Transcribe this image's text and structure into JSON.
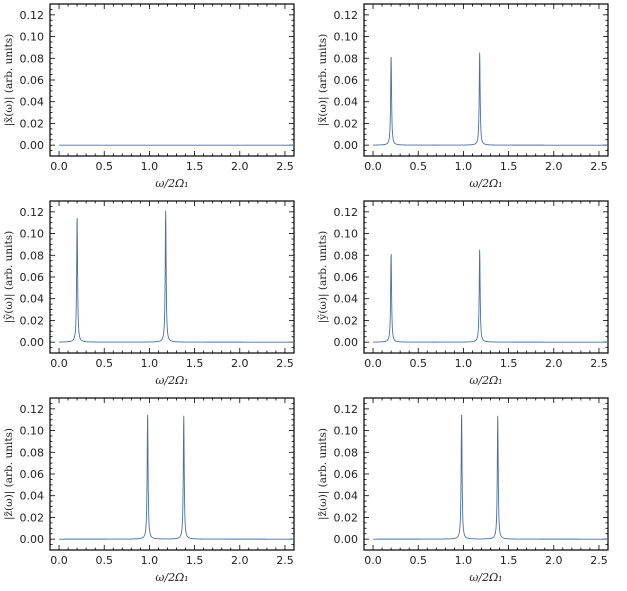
{
  "chart_data": [
    {
      "type": "line",
      "panel": "top-left",
      "xlabel": "ω/2Ω₁",
      "ylabel": "|x̃(ω)|  (arb. units)",
      "xlim": [
        -0.1,
        2.6
      ],
      "ylim": [
        -0.01,
        0.13
      ],
      "xticks": [
        0.0,
        0.5,
        1.0,
        1.5,
        2.0,
        2.5
      ],
      "xtick_labels": [
        "0.0",
        "0.5",
        "1.0",
        "1.5",
        "2.0",
        "2.5"
      ],
      "yticks": [
        0.0,
        0.02,
        0.04,
        0.06,
        0.08,
        0.1,
        0.12
      ],
      "ytick_labels": [
        "0.00",
        "0.02",
        "0.04",
        "0.06",
        "0.08",
        "0.10",
        "0.12"
      ],
      "series": [
        {
          "color": "#4a6fa5",
          "baseline": 0.0,
          "peaks": []
        }
      ]
    },
    {
      "type": "line",
      "panel": "top-right",
      "xlabel": "ω/2Ω₁",
      "ylabel": "|x̃(ω)|  (arb. units)",
      "xlim": [
        -0.1,
        2.6
      ],
      "ylim": [
        -0.01,
        0.13
      ],
      "xticks": [
        0.0,
        0.5,
        1.0,
        1.5,
        2.0,
        2.5
      ],
      "xtick_labels": [
        "0.0",
        "0.5",
        "1.0",
        "1.5",
        "2.0",
        "2.5"
      ],
      "yticks": [
        0.0,
        0.02,
        0.04,
        0.06,
        0.08,
        0.1,
        0.12
      ],
      "ytick_labels": [
        "0.00",
        "0.02",
        "0.04",
        "0.06",
        "0.08",
        "0.10",
        "0.12"
      ],
      "series": [
        {
          "color": "#4a6fa5",
          "baseline": 0.0,
          "peaks": [
            {
              "x": 0.2,
              "y": 0.083
            },
            {
              "x": 1.18,
              "y": 0.086
            }
          ]
        }
      ]
    },
    {
      "type": "line",
      "panel": "middle-left",
      "xlabel": "ω/2Ω₁",
      "ylabel": "|ỹ(ω)|  (arb. units)",
      "xlim": [
        -0.1,
        2.6
      ],
      "ylim": [
        -0.01,
        0.13
      ],
      "xticks": [
        0.0,
        0.5,
        1.0,
        1.5,
        2.0,
        2.5
      ],
      "xtick_labels": [
        "0.0",
        "0.5",
        "1.0",
        "1.5",
        "2.0",
        "2.5"
      ],
      "yticks": [
        0.0,
        0.02,
        0.04,
        0.06,
        0.08,
        0.1,
        0.12
      ],
      "ytick_labels": [
        "0.00",
        "0.02",
        "0.04",
        "0.06",
        "0.08",
        "0.10",
        "0.12"
      ],
      "series": [
        {
          "color": "#4a6fa5",
          "baseline": 0.0,
          "peaks": [
            {
              "x": 0.2,
              "y": 0.117
            },
            {
              "x": 1.18,
              "y": 0.122
            }
          ]
        }
      ]
    },
    {
      "type": "line",
      "panel": "middle-right",
      "xlabel": "ω/2Ω₁",
      "ylabel": "|ỹ(ω)|  (arb. units)",
      "xlim": [
        -0.1,
        2.6
      ],
      "ylim": [
        -0.01,
        0.13
      ],
      "xticks": [
        0.0,
        0.5,
        1.0,
        1.5,
        2.0,
        2.5
      ],
      "xtick_labels": [
        "0.0",
        "0.5",
        "1.0",
        "1.5",
        "2.0",
        "2.5"
      ],
      "yticks": [
        0.0,
        0.02,
        0.04,
        0.06,
        0.08,
        0.1,
        0.12
      ],
      "ytick_labels": [
        "0.00",
        "0.02",
        "0.04",
        "0.06",
        "0.08",
        "0.10",
        "0.12"
      ],
      "series": [
        {
          "color": "#4a6fa5",
          "baseline": 0.0,
          "peaks": [
            {
              "x": 0.2,
              "y": 0.083
            },
            {
              "x": 1.18,
              "y": 0.086
            }
          ]
        }
      ]
    },
    {
      "type": "line",
      "panel": "bottom-left",
      "xlabel": "ω/2Ω₁",
      "ylabel": "|z̃(ω)|  (arb. units)",
      "xlim": [
        -0.1,
        2.6
      ],
      "ylim": [
        -0.01,
        0.13
      ],
      "xticks": [
        0.0,
        0.5,
        1.0,
        1.5,
        2.0,
        2.5
      ],
      "xtick_labels": [
        "0.0",
        "0.5",
        "1.0",
        "1.5",
        "2.0",
        "2.5"
      ],
      "yticks": [
        0.0,
        0.02,
        0.04,
        0.06,
        0.08,
        0.1,
        0.12
      ],
      "ytick_labels": [
        "0.00",
        "0.02",
        "0.04",
        "0.06",
        "0.08",
        "0.10",
        "0.12"
      ],
      "series": [
        {
          "color": "#4a6fa5",
          "baseline": 0.0,
          "peaks": [
            {
              "x": 0.98,
              "y": 0.117
            },
            {
              "x": 1.38,
              "y": 0.114
            }
          ]
        }
      ]
    },
    {
      "type": "line",
      "panel": "bottom-right",
      "xlabel": "ω/2Ω₁",
      "ylabel": "|z̃(ω)|  (arb. units)",
      "xlim": [
        -0.1,
        2.6
      ],
      "ylim": [
        -0.01,
        0.13
      ],
      "xticks": [
        0.0,
        0.5,
        1.0,
        1.5,
        2.0,
        2.5
      ],
      "xtick_labels": [
        "0.0",
        "0.5",
        "1.0",
        "1.5",
        "2.0",
        "2.5"
      ],
      "yticks": [
        0.0,
        0.02,
        0.04,
        0.06,
        0.08,
        0.1,
        0.12
      ],
      "ytick_labels": [
        "0.00",
        "0.02",
        "0.04",
        "0.06",
        "0.08",
        "0.10",
        "0.12"
      ],
      "series": [
        {
          "color": "#4a6fa5",
          "baseline": 0.0,
          "peaks": [
            {
              "x": 0.98,
              "y": 0.117
            },
            {
              "x": 1.38,
              "y": 0.114
            }
          ]
        }
      ]
    }
  ]
}
